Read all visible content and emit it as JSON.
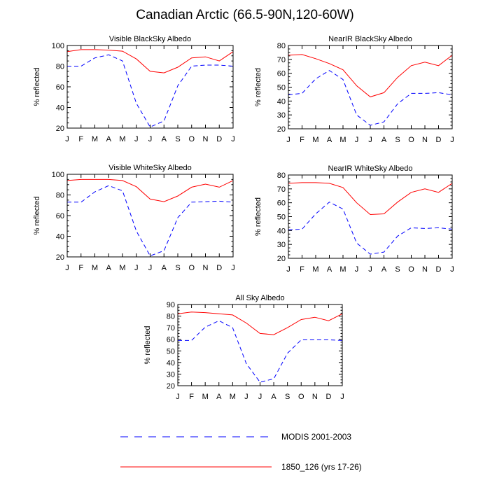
{
  "figure": {
    "title": "Canadian Arctic (66.5-90N,120-60W)"
  },
  "legend": [
    {
      "label": "MODIS 2001-2003",
      "color": "#0000ff",
      "dash": "dashed"
    },
    {
      "label": "1850_126 (yrs 17-26)",
      "color": "#ff0000",
      "dash": "solid"
    }
  ],
  "chart_data": [
    {
      "type": "line",
      "title": "Visible BlackSky Albedo",
      "ylabel": "% reflected",
      "xlabel": "",
      "categories": [
        "J",
        "F",
        "M",
        "A",
        "M",
        "J",
        "J",
        "A",
        "S",
        "O",
        "N",
        "D",
        "J"
      ],
      "ylim": [
        20,
        100
      ],
      "yticks": [
        20,
        40,
        60,
        80,
        100
      ],
      "series": [
        {
          "name": "MODIS 2001-2003",
          "color": "#0000ff",
          "dash": "dashed",
          "values": [
            80,
            80,
            88,
            91,
            85,
            44,
            21,
            27,
            61,
            80,
            81,
            81,
            80
          ]
        },
        {
          "name": "1850_126 (yrs 17-26)",
          "color": "#ff0000",
          "dash": "solid",
          "values": [
            94,
            96,
            96,
            95.5,
            94.5,
            87,
            75,
            73.5,
            79,
            88,
            89,
            85,
            94
          ]
        }
      ]
    },
    {
      "type": "line",
      "title": "NearIR BlackSky Albedo",
      "ylabel": "% reflected",
      "xlabel": "",
      "categories": [
        "J",
        "F",
        "M",
        "A",
        "M",
        "J",
        "J",
        "A",
        "S",
        "O",
        "N",
        "D",
        "J"
      ],
      "ylim": [
        20,
        80
      ],
      "yticks": [
        20,
        30,
        40,
        50,
        60,
        70,
        80
      ],
      "series": [
        {
          "name": "MODIS 2001-2003",
          "color": "#0000ff",
          "dash": "dashed",
          "values": [
            44.5,
            45.5,
            56,
            62,
            55.5,
            30,
            22.5,
            25,
            38,
            45.5,
            45.5,
            46,
            44.5
          ]
        },
        {
          "name": "1850_126 (yrs 17-26)",
          "color": "#ff0000",
          "dash": "solid",
          "values": [
            73,
            73.5,
            70.5,
            67,
            62.5,
            51,
            43,
            46,
            57,
            65.5,
            68,
            65.5,
            73
          ]
        }
      ]
    },
    {
      "type": "line",
      "title": "Visible WhiteSky Albedo",
      "ylabel": "% reflected",
      "xlabel": "",
      "categories": [
        "J",
        "F",
        "M",
        "A",
        "M",
        "J",
        "J",
        "A",
        "S",
        "O",
        "N",
        "D",
        "J"
      ],
      "ylim": [
        20,
        100
      ],
      "yticks": [
        20,
        40,
        60,
        80,
        100
      ],
      "series": [
        {
          "name": "MODIS 2001-2003",
          "color": "#0000ff",
          "dash": "dashed",
          "values": [
            73,
            73,
            83,
            89,
            84,
            45,
            21,
            26,
            58,
            73,
            73.5,
            74,
            73
          ]
        },
        {
          "name": "1850_126 (yrs 17-26)",
          "color": "#ff0000",
          "dash": "solid",
          "values": [
            94,
            95,
            95,
            95,
            94,
            88,
            76,
            73.5,
            79,
            87.5,
            90.5,
            87.5,
            94
          ]
        }
      ]
    },
    {
      "type": "line",
      "title": "NearIR WhiteSky Albedo",
      "ylabel": "% reflected",
      "xlabel": "",
      "categories": [
        "J",
        "F",
        "M",
        "A",
        "M",
        "J",
        "J",
        "A",
        "S",
        "O",
        "N",
        "D",
        "J"
      ],
      "ylim": [
        20,
        80
      ],
      "yticks": [
        20,
        30,
        40,
        50,
        60,
        70,
        80
      ],
      "series": [
        {
          "name": "MODIS 2001-2003",
          "color": "#0000ff",
          "dash": "dashed",
          "values": [
            40.5,
            41,
            52,
            60.5,
            55.5,
            31,
            23,
            24.5,
            36,
            42,
            41.5,
            42,
            41
          ]
        },
        {
          "name": "1850_126 (yrs 17-26)",
          "color": "#ff0000",
          "dash": "solid",
          "values": [
            74,
            74.5,
            74.5,
            74,
            71,
            60,
            51.5,
            52,
            60.5,
            67.5,
            70,
            67.5,
            74
          ]
        }
      ]
    },
    {
      "type": "line",
      "title": "All Sky Albedo",
      "ylabel": "% reflected",
      "xlabel": "",
      "categories": [
        "J",
        "F",
        "M",
        "A",
        "M",
        "J",
        "J",
        "A",
        "S",
        "O",
        "N",
        "D",
        "J"
      ],
      "ylim": [
        20,
        90
      ],
      "yticks": [
        20,
        30,
        40,
        50,
        60,
        70,
        80,
        90
      ],
      "series": [
        {
          "name": "MODIS 2001-2003",
          "color": "#0000ff",
          "dash": "dashed",
          "values": [
            59,
            59,
            70.5,
            76,
            70,
            39,
            23,
            26,
            48,
            59.5,
            59.5,
            59.5,
            59
          ]
        },
        {
          "name": "1850_126 (yrs 17-26)",
          "color": "#ff0000",
          "dash": "solid",
          "values": [
            82,
            83.5,
            83,
            82,
            81,
            74,
            65,
            64,
            70,
            77,
            79,
            76,
            82
          ]
        }
      ]
    }
  ]
}
